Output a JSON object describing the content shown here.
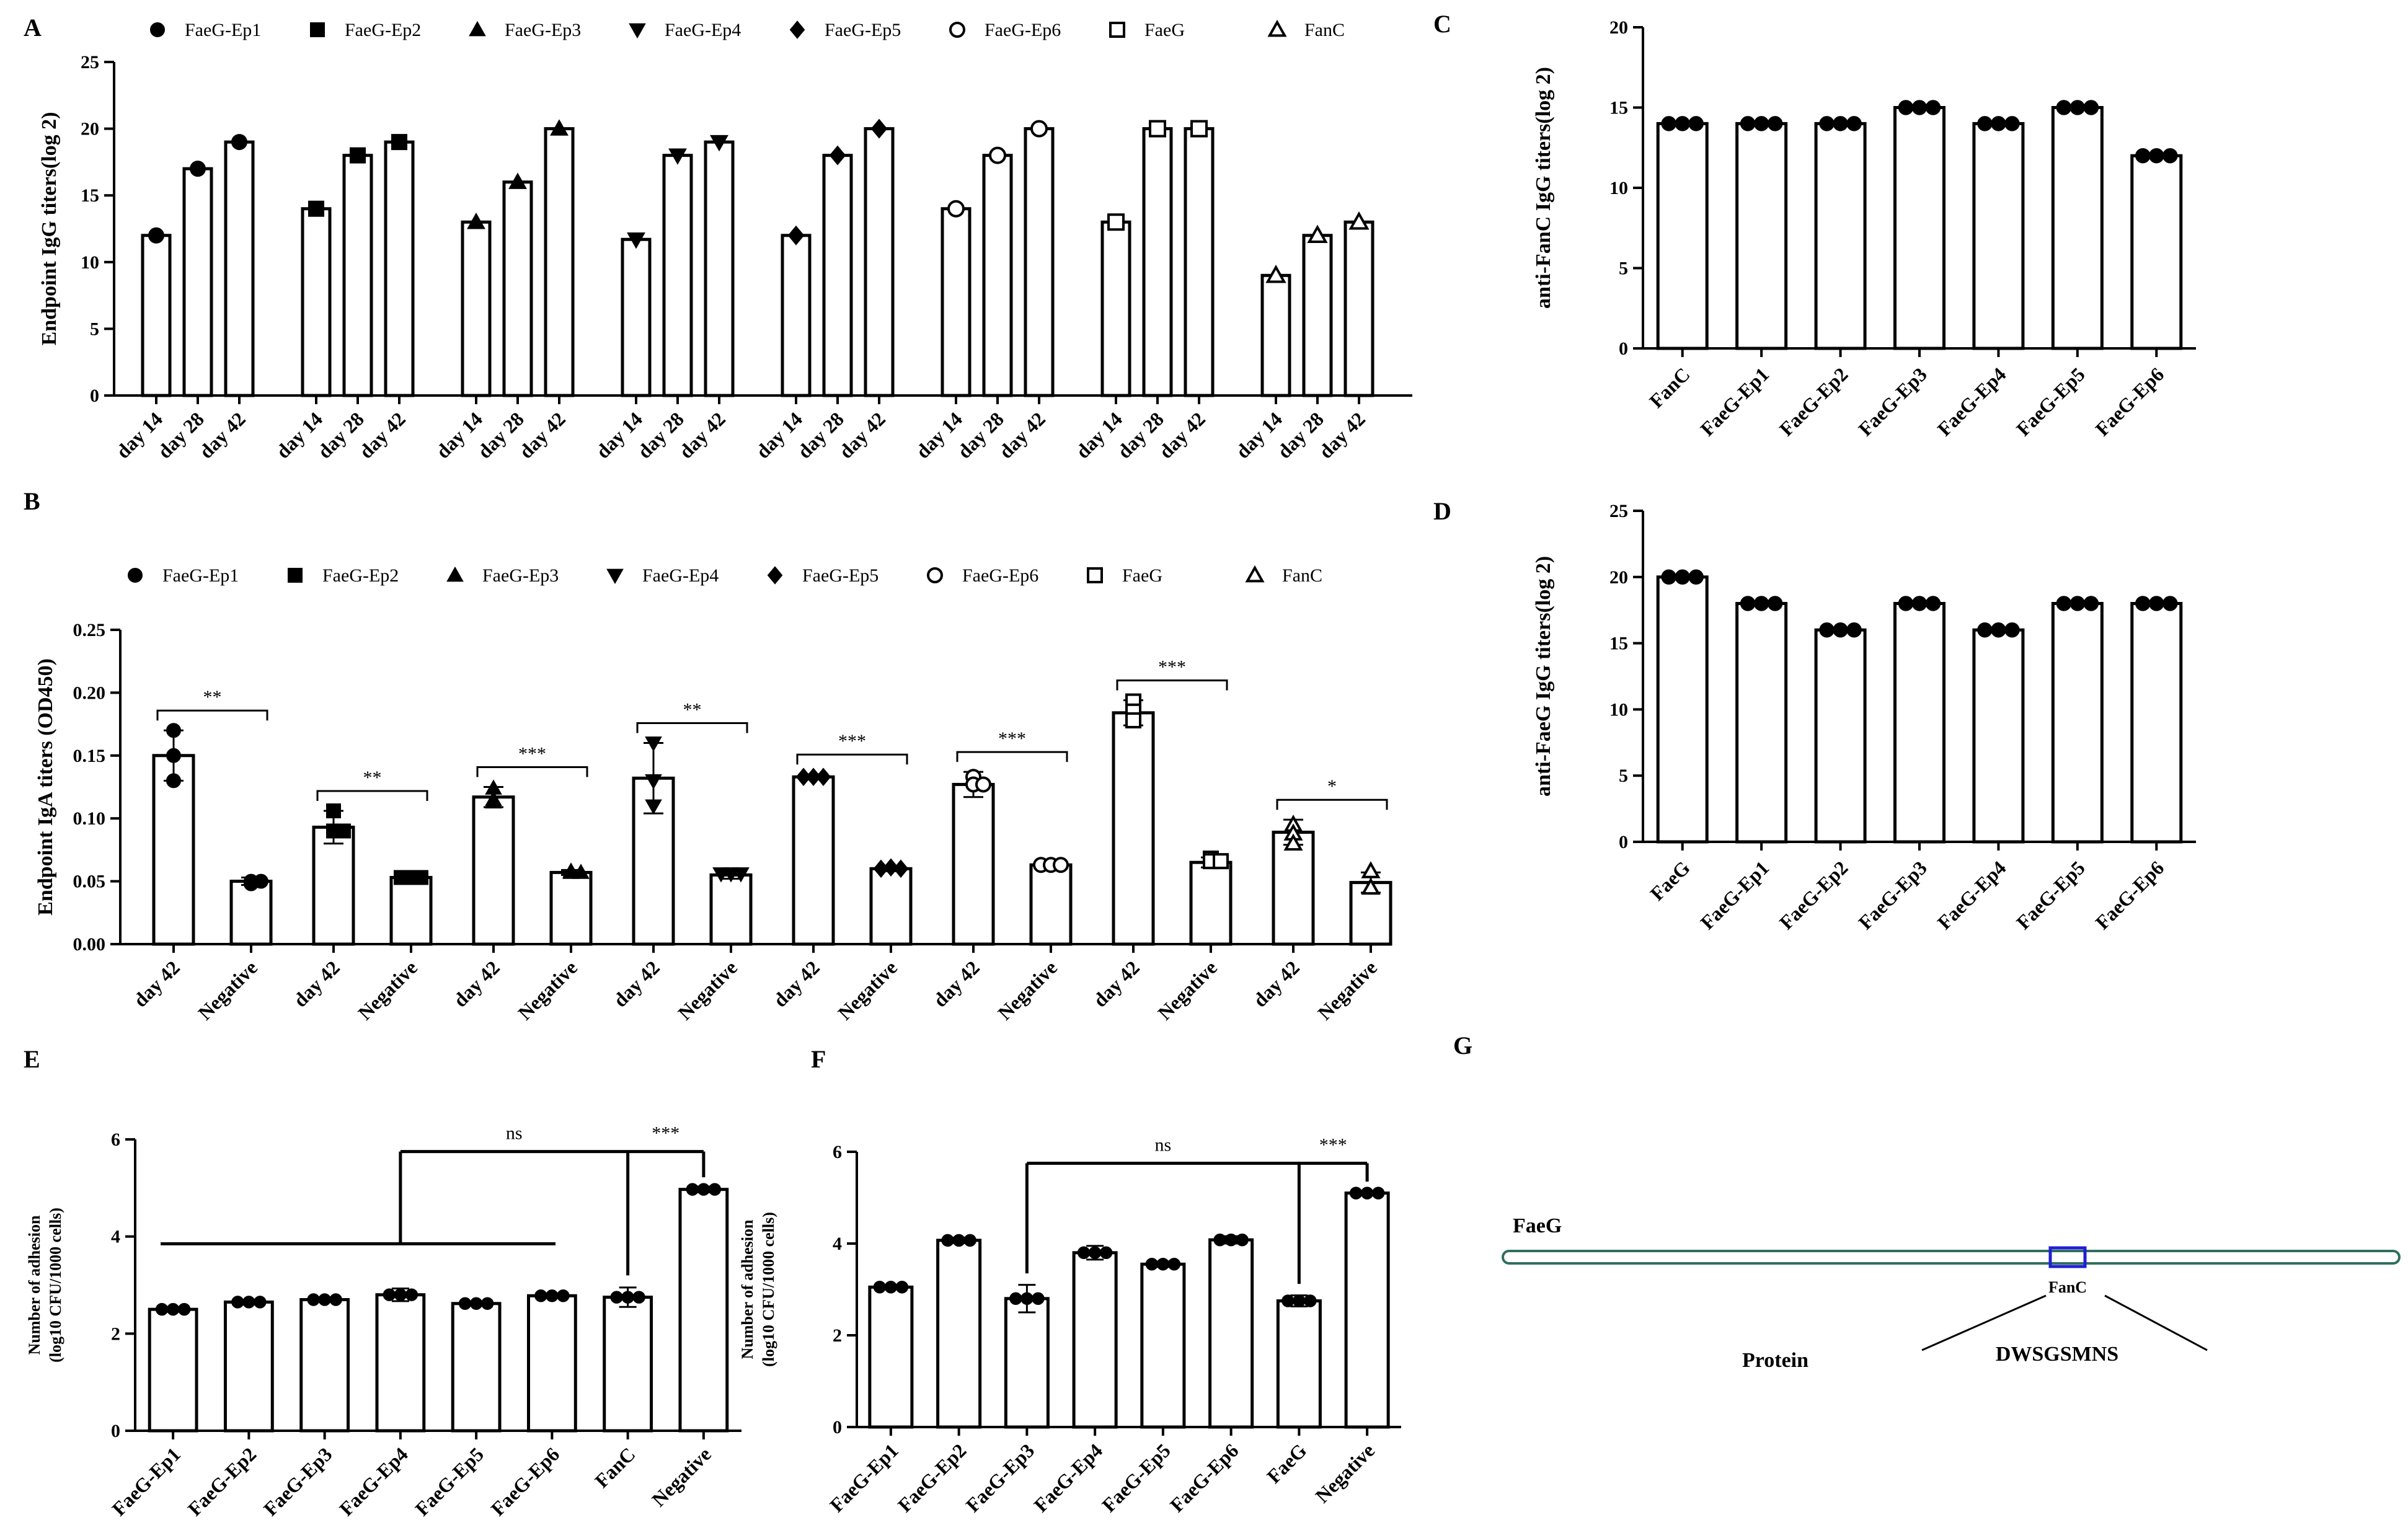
{
  "chart_data": [
    {
      "id": "A",
      "label": "A",
      "type": "bar",
      "ylabel": "Endpoint IgG titers(log 2)",
      "ylim": [
        0,
        25
      ],
      "yticks": [
        0,
        5,
        10,
        15,
        20,
        25
      ],
      "legend": [
        {
          "name": "FaeG-Ep1",
          "marker": "circle"
        },
        {
          "name": "FaeG-Ep2",
          "marker": "square"
        },
        {
          "name": "FaeG-Ep3",
          "marker": "triangle"
        },
        {
          "name": "FaeG-Ep4",
          "marker": "triangle-down"
        },
        {
          "name": "FaeG-Ep5",
          "marker": "diamond"
        },
        {
          "name": "FaeG-Ep6",
          "marker": "circle-open"
        },
        {
          "name": "FaeG",
          "marker": "square-open"
        },
        {
          "name": "FanC",
          "marker": "triangle-open"
        }
      ],
      "groups": [
        {
          "name": "FaeG-Ep1",
          "marker": "circle",
          "bars": [
            {
              "label": "day 14",
              "value": 12
            },
            {
              "label": "day 28",
              "value": 17
            },
            {
              "label": "day 42",
              "value": 19
            }
          ]
        },
        {
          "name": "FaeG-Ep2",
          "marker": "square",
          "bars": [
            {
              "label": "day 14",
              "value": 14
            },
            {
              "label": "day 28",
              "value": 18
            },
            {
              "label": "day 42",
              "value": 19
            }
          ]
        },
        {
          "name": "FaeG-Ep3",
          "marker": "triangle",
          "bars": [
            {
              "label": "day 14",
              "value": 13
            },
            {
              "label": "day 28",
              "value": 16
            },
            {
              "label": "day 42",
              "value": 20
            }
          ]
        },
        {
          "name": "FaeG-Ep4",
          "marker": "triangle-down",
          "bars": [
            {
              "label": "day 14",
              "value": 11.7
            },
            {
              "label": "day 28",
              "value": 18
            },
            {
              "label": "day 42",
              "value": 19
            }
          ]
        },
        {
          "name": "FaeG-Ep5",
          "marker": "diamond",
          "bars": [
            {
              "label": "day 14",
              "value": 12
            },
            {
              "label": "day 28",
              "value": 18
            },
            {
              "label": "day 42",
              "value": 20
            }
          ]
        },
        {
          "name": "FaeG-Ep6",
          "marker": "circle-open",
          "bars": [
            {
              "label": "day 14",
              "value": 14
            },
            {
              "label": "day 28",
              "value": 18
            },
            {
              "label": "day 42",
              "value": 20
            }
          ]
        },
        {
          "name": "FaeG",
          "marker": "square-open",
          "bars": [
            {
              "label": "day 14",
              "value": 13
            },
            {
              "label": "day 28",
              "value": 20
            },
            {
              "label": "day 42",
              "value": 20
            }
          ]
        },
        {
          "name": "FanC",
          "marker": "triangle-open",
          "bars": [
            {
              "label": "day 14",
              "value": 9
            },
            {
              "label": "day 28",
              "value": 12
            },
            {
              "label": "day 42",
              "value": 13
            }
          ]
        }
      ]
    },
    {
      "id": "B",
      "label": "B",
      "type": "bar",
      "ylabel": "Endpoint IgA titers (OD450)",
      "ylim": [
        0,
        0.25
      ],
      "yticks": [
        "0.00",
        "0.05",
        "0.10",
        "0.15",
        "0.20",
        "0.25"
      ],
      "legend": [
        {
          "name": "FaeG-Ep1",
          "marker": "circle"
        },
        {
          "name": "FaeG-Ep2",
          "marker": "square"
        },
        {
          "name": "FaeG-Ep3",
          "marker": "triangle"
        },
        {
          "name": "FaeG-Ep4",
          "marker": "triangle-down"
        },
        {
          "name": "FaeG-Ep5",
          "marker": "diamond"
        },
        {
          "name": "FaeG-Ep6",
          "marker": "circle-open"
        },
        {
          "name": "FaeG",
          "marker": "square-open"
        },
        {
          "name": "FanC",
          "marker": "triangle-open"
        }
      ],
      "groups": [
        {
          "name": "FaeG-Ep1",
          "marker": "circle",
          "sig": "**",
          "bars": [
            {
              "label": "day 42",
              "value": 0.15,
              "err": 0.02,
              "points": [
                0.17,
                0.15,
                0.13
              ]
            },
            {
              "label": "Negative",
              "value": 0.05,
              "err": 0.003,
              "points": [
                0.048,
                0.05,
                0.05
              ]
            }
          ]
        },
        {
          "name": "FaeG-Ep2",
          "marker": "square",
          "sig": "**",
          "bars": [
            {
              "label": "day 42",
              "value": 0.093,
              "err": 0.013,
              "points": [
                0.106,
                0.09,
                0.09
              ]
            },
            {
              "label": "Negative",
              "value": 0.053,
              "err": 0.003,
              "points": [
                0.053,
                0.053,
                0.053
              ]
            }
          ]
        },
        {
          "name": "FaeG-Ep3",
          "marker": "triangle",
          "sig": "***",
          "bars": [
            {
              "label": "day 42",
              "value": 0.117,
              "err": 0.008,
              "points": [
                0.124,
                0.115,
                0.113
              ]
            },
            {
              "label": "Negative",
              "value": 0.057,
              "err": 0.002,
              "points": [
                0.058,
                0.057,
                0.057
              ]
            }
          ]
        },
        {
          "name": "FaeG-Ep4",
          "marker": "triangle-down",
          "sig": "**",
          "bars": [
            {
              "label": "day 42",
              "value": 0.132,
              "err": 0.028,
              "points": [
                0.16,
                0.13,
                0.11
              ]
            },
            {
              "label": "Negative",
              "value": 0.055,
              "err": 0.003,
              "points": [
                0.056,
                0.056,
                0.056
              ]
            }
          ]
        },
        {
          "name": "FaeG-Ep5",
          "marker": "diamond",
          "sig": "***",
          "bars": [
            {
              "label": "day 42",
              "value": 0.133,
              "err": 0.002,
              "points": [
                0.133,
                0.133,
                0.133
              ]
            },
            {
              "label": "Negative",
              "value": 0.06,
              "err": 0.002,
              "points": [
                0.06,
                0.061,
                0.06
              ]
            }
          ]
        },
        {
          "name": "FaeG-Ep6",
          "marker": "circle-open",
          "sig": "***",
          "bars": [
            {
              "label": "day 42",
              "value": 0.127,
              "err": 0.01,
              "points": [
                0.133,
                0.127,
                0.127
              ]
            },
            {
              "label": "Negative",
              "value": 0.063,
              "err": 0.002,
              "points": [
                0.063,
                0.063,
                0.063
              ]
            }
          ]
        },
        {
          "name": "FaeG",
          "marker": "square-open",
          "sig": "***",
          "bars": [
            {
              "label": "day 42",
              "value": 0.184,
              "err": 0.01,
              "points": [
                0.193,
                0.185,
                0.178
              ]
            },
            {
              "label": "Negative",
              "value": 0.065,
              "err": 0.004,
              "points": [
                0.068,
                0.066,
                0.066
              ]
            }
          ]
        },
        {
          "name": "FanC",
          "marker": "triangle-open",
          "sig": "*",
          "bars": [
            {
              "label": "day 42",
              "value": 0.089,
              "err": 0.01,
              "points": [
                0.095,
                0.088,
                0.08
              ]
            },
            {
              "label": "Negative",
              "value": 0.049,
              "err": 0.008,
              "points": [
                0.058,
                0.045,
                0.045
              ]
            }
          ]
        }
      ]
    },
    {
      "id": "C",
      "label": "C",
      "type": "bar",
      "ylabel": "anti-FanC IgG titers(log 2)",
      "ylim": [
        0,
        20
      ],
      "yticks": [
        0,
        5,
        10,
        15,
        20
      ],
      "categories": [
        "FanC",
        "FaeG-Ep1",
        "FaeG-Ep2",
        "FaeG-Ep3",
        "FaeG-Ep4",
        "FaeG-Ep5",
        "FaeG-Ep6"
      ],
      "values": [
        14,
        14,
        14,
        15,
        14,
        15,
        12
      ]
    },
    {
      "id": "D",
      "label": "D",
      "type": "bar",
      "ylabel": "anti-FaeG IgG titers(log 2)",
      "ylim": [
        0,
        25
      ],
      "yticks": [
        0,
        5,
        10,
        15,
        20,
        25
      ],
      "categories": [
        "FaeG",
        "FaeG-Ep1",
        "FaeG-Ep2",
        "FaeG-Ep3",
        "FaeG-Ep4",
        "FaeG-Ep5",
        "FaeG-Ep6"
      ],
      "values": [
        20,
        18,
        16,
        18,
        16,
        18,
        18
      ]
    },
    {
      "id": "E",
      "label": "E",
      "type": "bar",
      "ylabel": [
        "Number of adhesion",
        "(log10 CFU/1000 cells)"
      ],
      "ylim": [
        0,
        6
      ],
      "yticks": [
        0,
        2,
        4,
        6
      ],
      "categories": [
        "FaeG-Ep1",
        "FaeG-Ep2",
        "FaeG-Ep3",
        "FaeG-Ep4",
        "FaeG-Ep5",
        "FaeG-Ep6",
        "FanC",
        "Negative"
      ],
      "values": [
        2.5,
        2.65,
        2.7,
        2.8,
        2.62,
        2.78,
        2.75,
        4.97
      ],
      "errors": [
        0.05,
        0.05,
        0.05,
        0.13,
        0.03,
        0.05,
        0.2,
        0.06
      ],
      "annotations": {
        "ns": "ns",
        "sig": "***"
      }
    },
    {
      "id": "F",
      "label": "F",
      "type": "bar",
      "ylabel": [
        "Number of adhesion",
        "(log10 CFU/1000 cells)"
      ],
      "ylim": [
        0,
        6
      ],
      "yticks": [
        0,
        2,
        4,
        6
      ],
      "categories": [
        "FaeG-Ep1",
        "FaeG-Ep2",
        "FaeG-Ep3",
        "FaeG-Ep4",
        "FaeG-Ep5",
        "FaeG-Ep6",
        "FaeG",
        "Negative"
      ],
      "values": [
        3.05,
        4.07,
        2.8,
        3.8,
        3.55,
        4.08,
        2.75,
        5.1
      ],
      "errors": [
        0.03,
        0.06,
        0.3,
        0.15,
        0.06,
        0.08,
        0.12,
        0.03
      ],
      "annotations": {
        "ns": "ns",
        "sig": "***"
      }
    }
  ],
  "schematic": {
    "label": "G",
    "protein_name": "FaeG",
    "epitope_label": "FanC",
    "left_caption": "Protein",
    "sequence": "DWSGSMNS",
    "colors": {
      "bar_stroke": "#2f6f5e",
      "highlight": "#1f1fd6"
    }
  }
}
